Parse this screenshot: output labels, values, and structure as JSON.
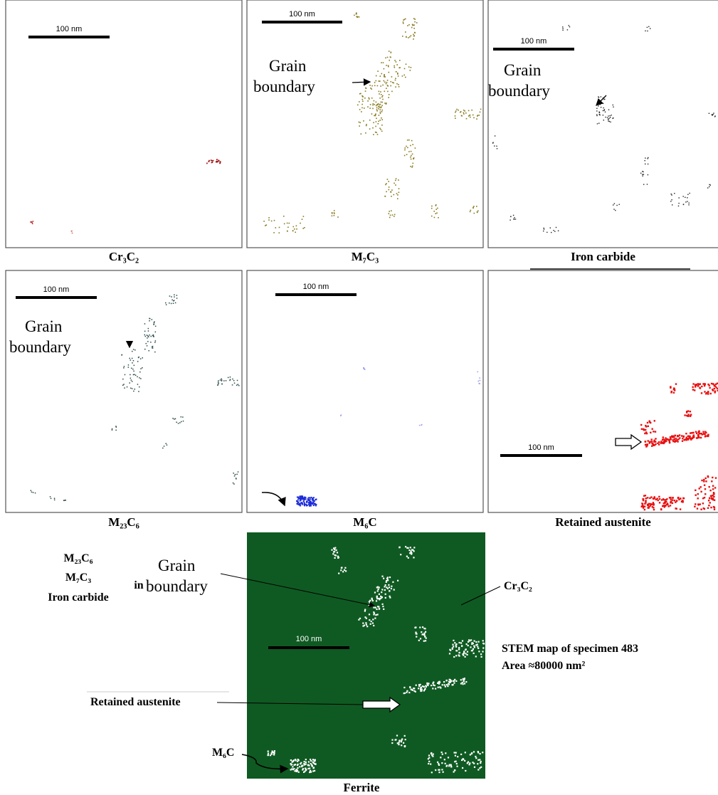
{
  "panels": [
    {
      "label": "Cr₃C₂",
      "scale_bar": "100 nm"
    },
    {
      "label": "M₇C₃",
      "scale_bar": "100 nm",
      "annotation": [
        "Grain",
        "boundary"
      ]
    },
    {
      "label": "Iron carbide",
      "scale_bar": "100 nm",
      "annotation": [
        "Grain",
        "boundary"
      ]
    },
    {
      "label": "M₂₃C₆",
      "scale_bar": "100 nm",
      "annotation": [
        "Grain",
        "boundary"
      ]
    },
    {
      "label": "M₆C",
      "scale_bar": "100 nm"
    },
    {
      "label": "Retained austenite",
      "scale_bar": "100 nm"
    }
  ],
  "composite": {
    "label": "Ferrite",
    "scale_bar": "100 nm",
    "phases": [
      "M₂₃C₆",
      "M₇C₃",
      "Iron carbide"
    ],
    "connector": "in",
    "grain_boundary": [
      "Grain",
      "boundary"
    ],
    "cr3c2": "Cr₃C₂",
    "retained_austenite": "Retained austenite",
    "m6c": "M₆C",
    "caption": [
      "STEM map of specimen 483",
      "Area ≈80000 nm²"
    ]
  }
}
